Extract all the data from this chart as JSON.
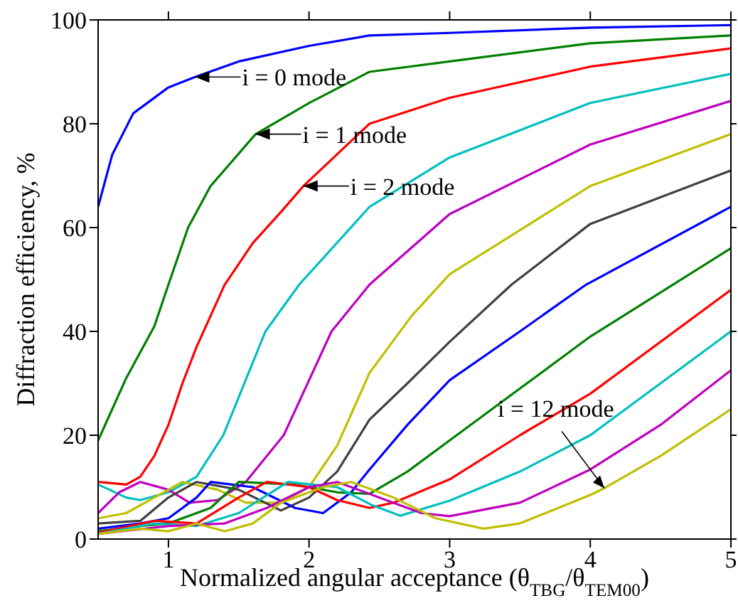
{
  "chart_data": {
    "type": "line",
    "xlabel": "Normalized angular acceptance (θ$_{TBG}$/θ$_{TEM00}$)",
    "ylabel": "Diffraction efficiency, %",
    "xlim": [
      0.5,
      5
    ],
    "xticks": [
      1,
      2,
      3,
      4,
      5
    ],
    "ylim": [
      0,
      100
    ],
    "yticks": [
      0,
      20,
      40,
      60,
      80,
      100
    ],
    "marker": "none",
    "line_style": "solid",
    "series": [
      {
        "color": "#0000ff",
        "x": [
          0.5,
          0.6,
          0.75,
          1,
          1.19,
          1.5,
          2,
          2.43,
          3,
          4,
          5
        ],
        "values": [
          64,
          74,
          82,
          87,
          89,
          92,
          95,
          97,
          97.5,
          98.5,
          99
        ]
      },
      {
        "color": "#008000",
        "x": [
          0.5,
          0.6,
          0.7,
          0.8,
          0.9,
          1,
          1.14,
          1.3,
          1.62,
          2,
          2.43,
          3,
          4,
          5
        ],
        "values": [
          19,
          25,
          31,
          36,
          41,
          49,
          60,
          68,
          78,
          84,
          90,
          92,
          95.5,
          97
        ]
      },
      {
        "color": "#ff0000",
        "x": [
          0.5,
          0.7,
          0.8,
          0.9,
          1,
          1.1,
          1.2,
          1.3,
          1.4,
          1.6,
          1.8,
          1.96,
          2.43,
          3,
          4,
          5
        ],
        "values": [
          11,
          10.5,
          12,
          16,
          22,
          30,
          37,
          43,
          49,
          57,
          63,
          68,
          80,
          85,
          91,
          94.5
        ]
      },
      {
        "color": "#00bfbf",
        "x": [
          0.5,
          0.7,
          0.8,
          1,
          1.2,
          1.39,
          1.69,
          1.93,
          2.43,
          3,
          4,
          5
        ],
        "values": [
          10.5,
          8,
          7.5,
          9,
          12,
          20,
          40,
          49,
          64,
          73.5,
          84,
          89.6
        ]
      },
      {
        "color": "#bf00bf",
        "x": [
          0.5,
          0.65,
          0.8,
          1,
          1.15,
          1.35,
          1.55,
          1.82,
          2.16,
          2.43,
          3,
          4,
          5
        ],
        "values": [
          5,
          9,
          11,
          9.5,
          7,
          7.5,
          11,
          20,
          40,
          49,
          62.6,
          76,
          84.4
        ]
      },
      {
        "color": "#bfbf00",
        "x": [
          0.5,
          0.7,
          0.9,
          1.1,
          1.35,
          1.55,
          1.8,
          2,
          2.2,
          2.43,
          2.73,
          3,
          4,
          5
        ],
        "values": [
          4,
          5,
          8,
          11,
          9.5,
          7,
          7,
          10,
          18,
          32,
          43,
          51,
          68,
          78
        ]
      },
      {
        "color": "#404040",
        "x": [
          0.5,
          0.8,
          1,
          1.2,
          1.5,
          1.8,
          2,
          2.2,
          2.43,
          2.7,
          3,
          3.44,
          4,
          5
        ],
        "values": [
          3,
          3.5,
          8,
          11,
          9.5,
          5.5,
          8,
          13,
          23,
          30,
          38,
          49,
          60.7,
          71
        ]
      },
      {
        "color": "#0000ff",
        "x": [
          0.5,
          0.8,
          1,
          1.2,
          1.3,
          1.6,
          1.9,
          2.1,
          2.3,
          2.43,
          2.7,
          3,
          3.5,
          3.97,
          5
        ],
        "values": [
          2,
          3,
          4,
          8,
          11,
          10,
          6,
          5,
          9,
          13.4,
          22,
          30.6,
          40,
          49,
          64
        ]
      },
      {
        "color": "#008000",
        "x": [
          0.5,
          0.8,
          1,
          1.3,
          1.5,
          1.9,
          2.2,
          2.43,
          2.7,
          3,
          3.5,
          4,
          5
        ],
        "values": [
          1.5,
          2.5,
          3,
          6,
          11,
          10.5,
          9,
          8.7,
          13,
          19,
          29,
          39,
          56
        ]
      },
      {
        "color": "#ff0000",
        "x": [
          0.5,
          0.9,
          1.2,
          1.5,
          1.7,
          2,
          2.2,
          2.43,
          2.6,
          3,
          3.5,
          4,
          5
        ],
        "values": [
          1.2,
          3.5,
          3,
          8,
          11,
          10,
          7.5,
          6,
          7,
          11.5,
          20,
          28,
          48
        ]
      },
      {
        "color": "#00bfbf",
        "x": [
          0.5,
          0.9,
          1.2,
          1.5,
          1.85,
          2.2,
          2.45,
          2.65,
          3,
          3.5,
          4,
          4.5,
          5
        ],
        "values": [
          1,
          3,
          2.5,
          5,
          11,
          10,
          6.5,
          4.5,
          7.4,
          13,
          20,
          30,
          40
        ]
      },
      {
        "color": "#bf00bf",
        "x": [
          0.5,
          1,
          1.4,
          1.7,
          2,
          2.2,
          2.6,
          2.8,
          3,
          3.5,
          4,
          4.5,
          5
        ],
        "values": [
          1,
          2.5,
          3,
          6,
          10,
          11,
          7,
          5,
          4.4,
          7,
          13.4,
          22,
          32.5
        ]
      },
      {
        "color": "#bfbf00",
        "x": [
          0.5,
          0.8,
          1,
          1.2,
          1.4,
          1.6,
          1.8,
          2.1,
          2.3,
          2.6,
          2.9,
          3.24,
          3.5,
          4,
          4.1,
          4.5,
          5
        ],
        "values": [
          1,
          2,
          1.5,
          3,
          1.5,
          3,
          7,
          10,
          11,
          8,
          4,
          2,
          3,
          8.5,
          9.8,
          16,
          25
        ]
      }
    ],
    "annotations": [
      {
        "text": "i = 0 mode",
        "x": 1.19,
        "y": 89
      },
      {
        "text": "i = 1 mode",
        "x": 1.62,
        "y": 78
      },
      {
        "text": "i = 2 mode",
        "x": 1.96,
        "y": 68
      },
      {
        "text": "i = 12 mode",
        "x": 4.1,
        "y": 9.8
      }
    ]
  }
}
